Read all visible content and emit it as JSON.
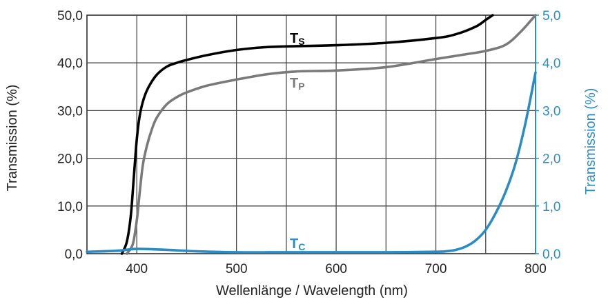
{
  "chart_data": {
    "type": "line",
    "title": "",
    "xlabel": "Wellenlänge / Wavelength (nm)",
    "ylabel_left": "Transmission (%)",
    "ylabel_right": "Transmission (%)",
    "xlim": [
      350,
      800
    ],
    "ylim_left": [
      0,
      50
    ],
    "ylim_right": [
      0,
      5
    ],
    "grid": true,
    "x_ticks": [
      {
        "value": 400,
        "label": "400"
      },
      {
        "value": 500,
        "label": "500"
      },
      {
        "value": 600,
        "label": "600"
      },
      {
        "value": 700,
        "label": "700"
      },
      {
        "value": 800,
        "label": "800"
      }
    ],
    "y_ticks_left": [
      {
        "value": 0,
        "label": "0,0"
      },
      {
        "value": 10,
        "label": "10,0"
      },
      {
        "value": 20,
        "label": "20,0"
      },
      {
        "value": 30,
        "label": "30,0"
      },
      {
        "value": 40,
        "label": "40,0"
      },
      {
        "value": 50,
        "label": "50,0"
      }
    ],
    "y_ticks_right": [
      {
        "value": 0,
        "label": "0,0"
      },
      {
        "value": 1,
        "label": "1,0"
      },
      {
        "value": 2,
        "label": "2,0"
      },
      {
        "value": 3,
        "label": "3,0"
      },
      {
        "value": 4,
        "label": "4,0"
      },
      {
        "value": 5,
        "label": "5,0"
      }
    ],
    "series": [
      {
        "name": "Ts",
        "label_main": "T",
        "label_sub": "S",
        "axis": "left",
        "color": "#000000",
        "x": [
          385,
          390,
          394,
          397,
          400,
          403,
          407,
          412,
          420,
          430,
          440,
          450,
          470,
          500,
          530,
          560,
          600,
          650,
          700,
          720,
          740,
          750,
          757
        ],
        "y": [
          0,
          2.5,
          8,
          16,
          24,
          29,
          32.5,
          35,
          37.5,
          39.2,
          40,
          40.6,
          41.6,
          42.7,
          43.3,
          43.5,
          43.7,
          44.2,
          45.2,
          46,
          47.6,
          49,
          50
        ]
      },
      {
        "name": "Tp",
        "label_main": "T",
        "label_sub": "P",
        "axis": "left",
        "color": "#7a7a7a",
        "x": [
          390,
          396,
          400,
          403,
          406,
          410,
          415,
          420,
          430,
          440,
          450,
          470,
          500,
          530,
          560,
          600,
          650,
          700,
          730,
          750,
          770,
          785,
          800
        ],
        "y": [
          0,
          2,
          7,
          13,
          18.5,
          22.5,
          26,
          28.5,
          31.3,
          32.8,
          33.8,
          35.2,
          36.5,
          37.6,
          38.2,
          38.4,
          39.1,
          40.8,
          41.8,
          42.5,
          43.8,
          46.5,
          50
        ]
      },
      {
        "name": "Tc",
        "label_main": "T",
        "label_sub": "C",
        "axis": "right",
        "color": "#2b8cc4",
        "x": [
          350,
          380,
          400,
          430,
          460,
          500,
          550,
          600,
          650,
          700,
          710,
          720,
          730,
          740,
          750,
          760,
          770,
          780,
          790,
          800
        ],
        "y": [
          0.04,
          0.06,
          0.1,
          0.08,
          0.05,
          0.03,
          0.03,
          0.03,
          0.03,
          0.04,
          0.05,
          0.08,
          0.15,
          0.28,
          0.5,
          0.85,
          1.3,
          1.9,
          2.75,
          3.8
        ]
      }
    ]
  }
}
